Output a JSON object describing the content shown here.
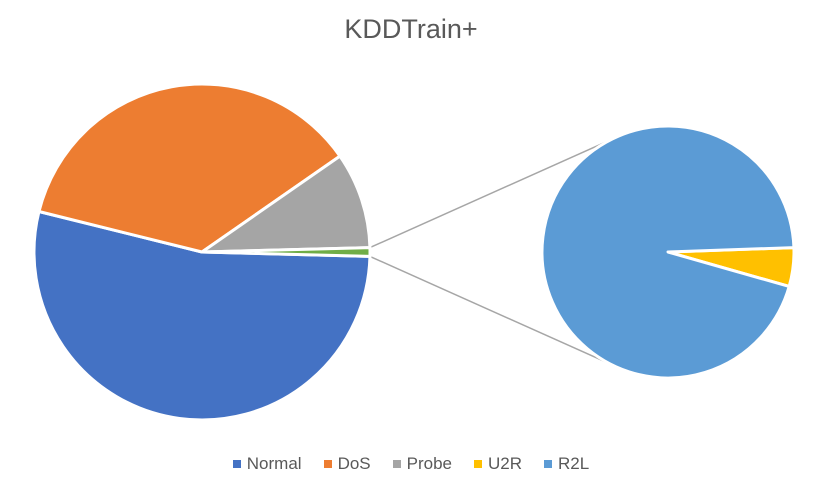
{
  "chart_data": {
    "type": "pie",
    "subtype": "pie-of-pie",
    "title": "KDDTrain+",
    "categories": [
      "Normal",
      "DoS",
      "Probe",
      "U2R",
      "R2L"
    ],
    "values": [
      67343,
      45927,
      11656,
      52,
      995
    ],
    "colors": [
      "#4472C4",
      "#ED7D31",
      "#A5A5A5",
      "#FFC000",
      "#5B9BD5"
    ],
    "main_pie": {
      "slices": [
        "Normal",
        "DoS",
        "Probe",
        "Other"
      ],
      "other_color": "#70AD47"
    },
    "secondary_pie": {
      "slices": [
        "U2R",
        "R2L"
      ]
    },
    "legend_position": "bottom"
  }
}
